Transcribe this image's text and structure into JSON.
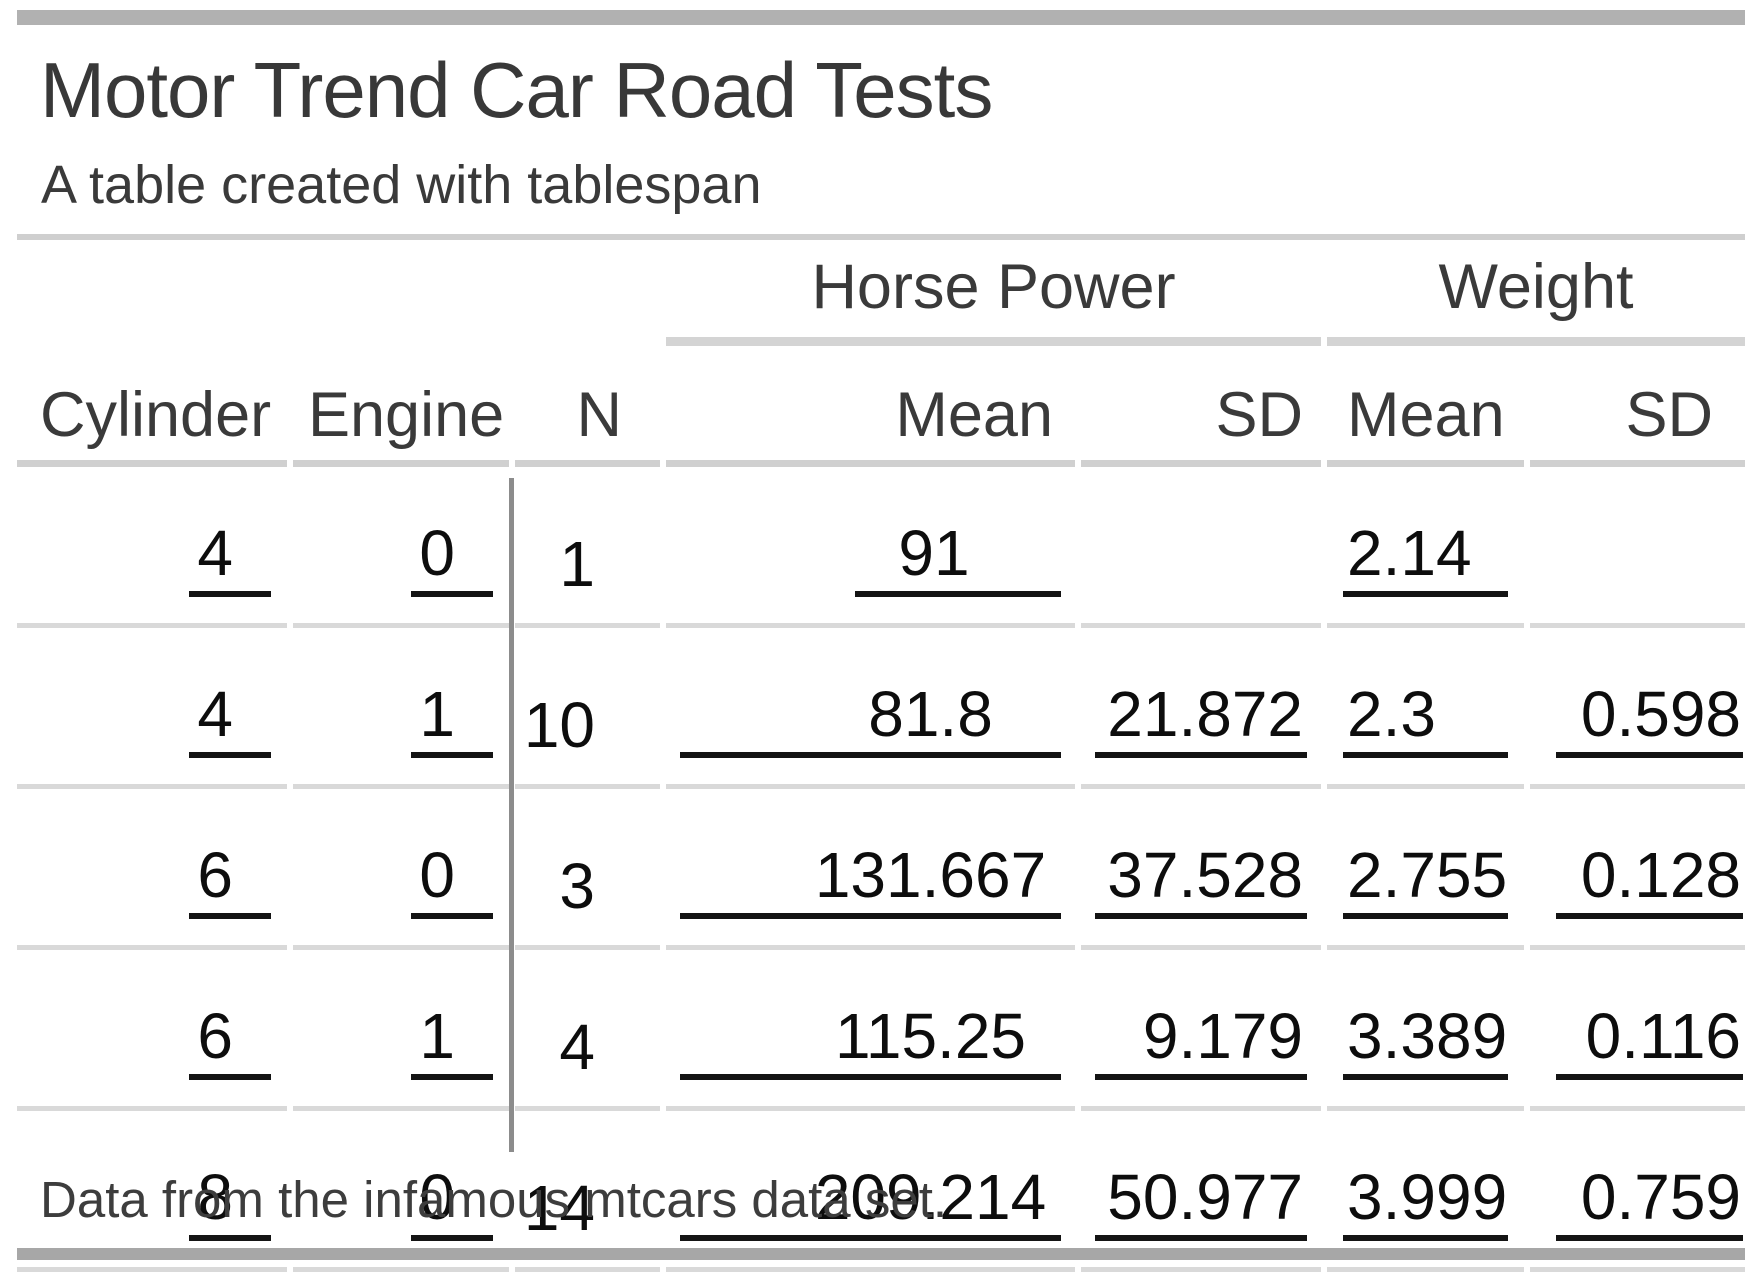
{
  "table": {
    "title": "Motor Trend Car Road Tests",
    "subtitle": "A table created with tablespan",
    "footnote": "Data from the infamous mtcars data set.",
    "spanners": [
      {
        "label": "Horse Power",
        "span": 2
      },
      {
        "label": "Weight",
        "span": 2
      }
    ],
    "stub_columns": [
      "Cylinder",
      "Engine",
      "N"
    ],
    "sub_columns": [
      "Mean",
      "SD",
      "Mean",
      "SD"
    ],
    "rows": [
      {
        "cylinder": "4",
        "engine": "0",
        "n": "1",
        "hp_mean": "91",
        "hp_sd": "",
        "wt_mean": "2.14",
        "wt_sd": ""
      },
      {
        "cylinder": "4",
        "engine": "1",
        "n": "10",
        "hp_mean": "81.8",
        "hp_sd": "21.872",
        "wt_mean": "2.3",
        "wt_sd": "0.598"
      },
      {
        "cylinder": "6",
        "engine": "0",
        "n": "3",
        "hp_mean": "131.667",
        "hp_sd": "37.528",
        "wt_mean": "2.755",
        "wt_sd": "0.128"
      },
      {
        "cylinder": "6",
        "engine": "1",
        "n": "4",
        "hp_mean": "115.25",
        "hp_sd": "9.179",
        "wt_mean": "3.389",
        "wt_sd": "0.116"
      },
      {
        "cylinder": "8",
        "engine": "0",
        "n": "14",
        "hp_mean": "209.214",
        "hp_sd": "50.977",
        "wt_mean": "3.999",
        "wt_sd": "0.759"
      }
    ]
  },
  "colors": {
    "top_rule": "#b1b1b1",
    "bottom_rule": "#a7a7a7",
    "light_rule": "#d0d0d0",
    "row_separator": "#d9d9d9",
    "cell_underline": "#141414",
    "divider": "#8c8c8c",
    "heading_text": "#3a3a3a",
    "data_text": "#0d0d0d"
  },
  "chart_data": {
    "type": "table",
    "title": "Motor Trend Car Road Tests",
    "subtitle": "A table created with tablespan",
    "footnote": "Data from the infamous mtcars data set.",
    "column_spanners": {
      "Horse Power": [
        "Mean",
        "SD"
      ],
      "Weight": [
        "Mean",
        "SD"
      ]
    },
    "columns": [
      "Cylinder",
      "Engine",
      "N",
      "Horse Power Mean",
      "Horse Power SD",
      "Weight Mean",
      "Weight SD"
    ],
    "rows": [
      [
        4,
        0,
        1,
        91,
        null,
        2.14,
        null
      ],
      [
        4,
        1,
        10,
        81.8,
        21.872,
        2.3,
        0.598
      ],
      [
        6,
        0,
        3,
        131.667,
        37.528,
        2.755,
        0.128
      ],
      [
        6,
        1,
        4,
        115.25,
        9.179,
        3.389,
        0.116
      ],
      [
        8,
        0,
        14,
        209.214,
        50.977,
        3.999,
        0.759
      ]
    ]
  }
}
